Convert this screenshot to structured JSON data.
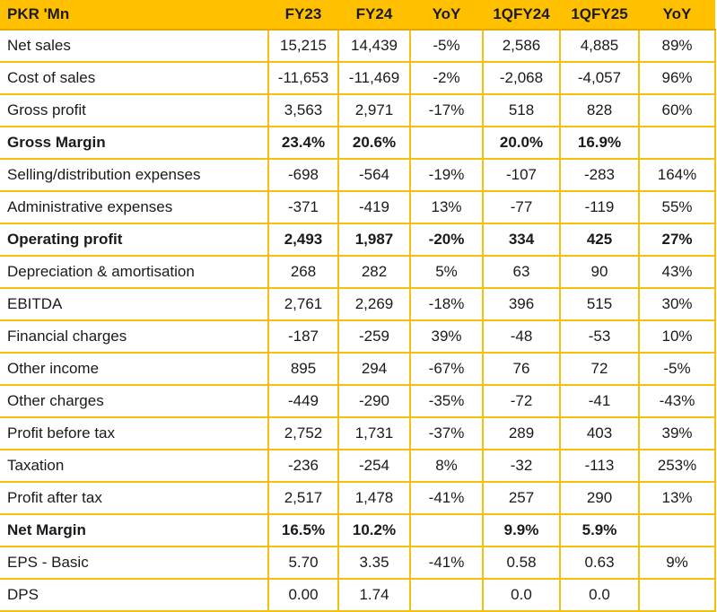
{
  "table": {
    "headers": [
      "PKR 'Mn",
      "FY23",
      "FY24",
      "YoY",
      "1QFY24",
      "1QFY25",
      "YoY"
    ],
    "rows": [
      {
        "label": "Net sales",
        "bold": false,
        "cells": [
          "15,215",
          "14,439",
          "-5%",
          "2,586",
          "4,885",
          "89%"
        ]
      },
      {
        "label": "Cost of sales",
        "bold": false,
        "cells": [
          "-11,653",
          "-11,469",
          "-2%",
          "-2,068",
          "-4,057",
          "96%"
        ]
      },
      {
        "label": "Gross profit",
        "bold": false,
        "cells": [
          "3,563",
          "2,971",
          "-17%",
          "518",
          "828",
          "60%"
        ]
      },
      {
        "label": "Gross Margin",
        "bold": true,
        "cells": [
          "23.4%",
          "20.6%",
          "",
          "20.0%",
          "16.9%",
          ""
        ]
      },
      {
        "label": "Selling/distribution expenses",
        "bold": false,
        "cells": [
          "-698",
          "-564",
          "-19%",
          "-107",
          "-283",
          "164%"
        ]
      },
      {
        "label": "Administrative expenses",
        "bold": false,
        "cells": [
          "-371",
          "-419",
          "13%",
          "-77",
          "-119",
          "55%"
        ]
      },
      {
        "label": "Operating profit",
        "bold": true,
        "cells": [
          "2,493",
          "1,987",
          "-20%",
          "334",
          "425",
          "27%"
        ]
      },
      {
        "label": "Depreciation & amortisation",
        "bold": false,
        "cells": [
          "268",
          "282",
          "5%",
          "63",
          "90",
          "43%"
        ]
      },
      {
        "label": "EBITDA",
        "bold": false,
        "cells": [
          "2,761",
          "2,269",
          "-18%",
          "396",
          "515",
          "30%"
        ]
      },
      {
        "label": "Financial charges",
        "bold": false,
        "cells": [
          "-187",
          "-259",
          "39%",
          "-48",
          "-53",
          "10%"
        ]
      },
      {
        "label": "Other income",
        "bold": false,
        "cells": [
          "895",
          "294",
          "-67%",
          "76",
          "72",
          "-5%"
        ]
      },
      {
        "label": "Other charges",
        "bold": false,
        "cells": [
          "-449",
          "-290",
          "-35%",
          "-72",
          "-41",
          "-43%"
        ]
      },
      {
        "label": "Profit before tax",
        "bold": false,
        "cells": [
          "2,752",
          "1,731",
          "-37%",
          "289",
          "403",
          "39%"
        ]
      },
      {
        "label": "Taxation",
        "bold": false,
        "cells": [
          "-236",
          "-254",
          "8%",
          "-32",
          "-113",
          "253%"
        ]
      },
      {
        "label": "Profit after tax",
        "bold": false,
        "cells": [
          "2,517",
          "1,478",
          "-41%",
          "257",
          "290",
          "13%"
        ]
      },
      {
        "label": "Net Margin",
        "bold": true,
        "cells": [
          "16.5%",
          "10.2%",
          "",
          "9.9%",
          "5.9%",
          ""
        ]
      },
      {
        "label": "EPS - Basic",
        "bold": false,
        "cells": [
          "5.70",
          "3.35",
          "-41%",
          "0.58",
          "0.63",
          "9%"
        ]
      },
      {
        "label": "DPS",
        "bold": false,
        "cells": [
          "0.00",
          "1.74",
          "",
          "0.0",
          "0.0",
          ""
        ]
      }
    ]
  },
  "colors": {
    "header_background": "#ffc000",
    "grid_lines": "#f4c20d"
  }
}
